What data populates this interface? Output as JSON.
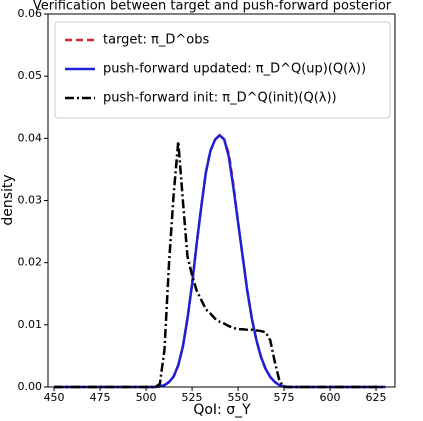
{
  "chart_data": {
    "type": "line",
    "title": "Verification between target and push-forward posterior",
    "x_label": "QoI: σ_Y",
    "y_label": "density",
    "x": [
      450,
      460,
      470,
      480,
      490,
      500,
      502.5,
      505,
      507.5,
      510,
      512.5,
      515,
      517.5,
      520,
      522.5,
      525,
      527.5,
      530,
      532.5,
      535,
      537.5,
      540,
      542.5,
      545,
      547.5,
      550,
      552.5,
      555,
      557.5,
      560,
      562.5,
      565,
      567.5,
      570,
      572.5,
      575,
      577.5,
      580,
      590,
      600,
      610,
      620,
      630
    ],
    "series": [
      {
        "name": "target: π_D^obs",
        "color": "#d62728",
        "linestyle": "--",
        "values": [
          0,
          0,
          0,
          0,
          0,
          0,
          0,
          0,
          0.0001,
          0.0003,
          0.0008,
          0.0017,
          0.0035,
          0.0065,
          0.011,
          0.0165,
          0.023,
          0.029,
          0.0345,
          0.038,
          0.0398,
          0.0405,
          0.0398,
          0.0375,
          0.0325,
          0.0265,
          0.021,
          0.0155,
          0.011,
          0.0075,
          0.0048,
          0.0029,
          0.0016,
          0.0008,
          0.0003,
          0.0001,
          0,
          0,
          0,
          0,
          0,
          0,
          0
        ]
      },
      {
        "name": "push-forward updated: π_D^Q(up)(Q(λ))",
        "color": "#1f1fd6",
        "linestyle": "-",
        "values": [
          0,
          0,
          0,
          0,
          0,
          0,
          0,
          0,
          0.0001,
          0.0003,
          0.0008,
          0.0017,
          0.0035,
          0.0065,
          0.011,
          0.0165,
          0.023,
          0.029,
          0.0345,
          0.038,
          0.0398,
          0.0405,
          0.0398,
          0.037,
          0.032,
          0.0265,
          0.021,
          0.0155,
          0.011,
          0.0075,
          0.0048,
          0.0029,
          0.0016,
          0.0008,
          0.0003,
          0.0001,
          0,
          0,
          0,
          0,
          0,
          0,
          0
        ]
      },
      {
        "name": "push-forward init: π_D^Q(init)(Q(λ))",
        "color": "#000000",
        "linestyle": "-.",
        "values": [
          0,
          0,
          0,
          0,
          0,
          0,
          0,
          0,
          0.0005,
          0.006,
          0.02,
          0.031,
          0.0395,
          0.03,
          0.021,
          0.018,
          0.0155,
          0.014,
          0.0125,
          0.0118,
          0.011,
          0.0105,
          0.0102,
          0.0098,
          0.0095,
          0.0093,
          0.0093,
          0.0092,
          0.0092,
          0.0091,
          0.009,
          0.0088,
          0.0075,
          0.004,
          0.001,
          0,
          0,
          0,
          0,
          0,
          0,
          0,
          0
        ]
      }
    ],
    "xlim": [
      446.7,
      635.3
    ],
    "xticks": [
      450,
      475,
      500,
      525,
      550,
      575,
      600,
      625
    ],
    "ylim": [
      0,
      0.06
    ],
    "yticks": [
      {
        "value": 0,
        "label": "0.00"
      },
      {
        "value": 0.01,
        "label": "0.01"
      },
      {
        "value": 0.02,
        "label": "0.02"
      },
      {
        "value": 0.03,
        "label": "0.03"
      },
      {
        "value": 0.04,
        "label": "0.04"
      },
      {
        "value": 0.05,
        "label": "0.05"
      },
      {
        "value": 0.06,
        "label": "0.06"
      }
    ],
    "legend": "upper left",
    "grid": false
  }
}
